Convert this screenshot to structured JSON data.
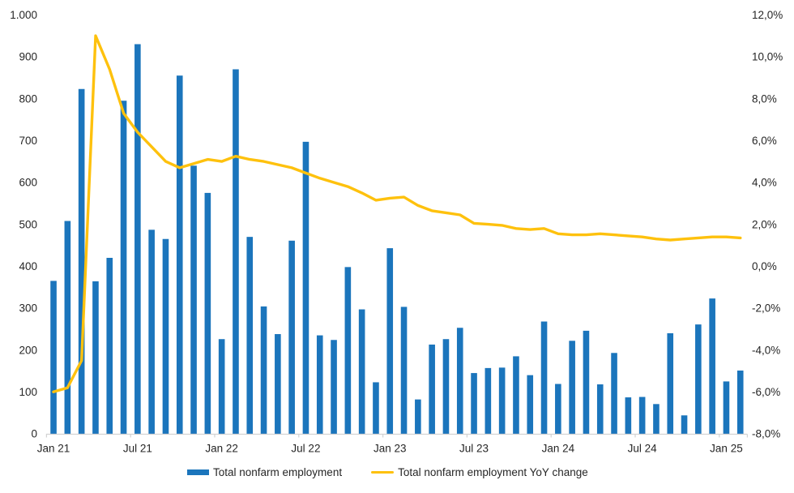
{
  "chart_data": {
    "type": "combo-bar-line",
    "title": "",
    "months": [
      "Jan 21",
      "Feb 21",
      "Mar 21",
      "Apr 21",
      "May 21",
      "Jun 21",
      "Jul 21",
      "Aug 21",
      "Sep 21",
      "Oct 21",
      "Nov 21",
      "Dec 21",
      "Jan 22",
      "Feb 22",
      "Mar 22",
      "Apr 22",
      "May 22",
      "Jun 22",
      "Jul 22",
      "Aug 22",
      "Sep 22",
      "Oct 22",
      "Nov 22",
      "Dec 22",
      "Jan 23",
      "Feb 23",
      "Mar 23",
      "Apr 23",
      "May 23",
      "Jun 23",
      "Jul 23",
      "Aug 23",
      "Sep 23",
      "Oct 23",
      "Nov 23",
      "Dec 23",
      "Jan 24",
      "Feb 24",
      "Mar 24",
      "Apr 24",
      "May 24",
      "Jun 24",
      "Jul 24",
      "Aug 24",
      "Sep 24",
      "Oct 24",
      "Nov 24",
      "Dec 24",
      "Jan 25",
      "Feb 25"
    ],
    "series": [
      {
        "name": "Total nonfarm employment",
        "type": "bar",
        "axis": "left",
        "color": "#1B75BC",
        "values": [
          365,
          508,
          823,
          364,
          420,
          795,
          930,
          487,
          465,
          855,
          640,
          575,
          226,
          870,
          470,
          304,
          238,
          461,
          697,
          235,
          224,
          398,
          297,
          123,
          443,
          303,
          82,
          213,
          226,
          253,
          145,
          157,
          158,
          185,
          140,
          268,
          119,
          222,
          246,
          118,
          193,
          87,
          88,
          71,
          240,
          44,
          261,
          323,
          125,
          151
        ]
      },
      {
        "name": "Total nonfarm employment YoY change",
        "type": "line",
        "axis": "right",
        "color": "#FEC10D",
        "values": [
          -6.0,
          -5.8,
          -4.5,
          11.0,
          9.4,
          7.3,
          6.4,
          5.7,
          5.0,
          4.7,
          4.9,
          5.1,
          5.0,
          5.25,
          5.1,
          5.0,
          4.85,
          4.7,
          4.45,
          4.2,
          4.0,
          3.8,
          3.5,
          3.15,
          3.25,
          3.3,
          2.9,
          2.65,
          2.55,
          2.45,
          2.05,
          2.0,
          1.95,
          1.8,
          1.75,
          1.8,
          1.55,
          1.5,
          1.5,
          1.55,
          1.5,
          1.45,
          1.4,
          1.3,
          1.25,
          1.3,
          1.35,
          1.4,
          1.4,
          1.35
        ]
      }
    ],
    "left_axis": {
      "min": 0,
      "max": 1000,
      "tick_labels": [
        "1.000",
        "900",
        "800",
        "700",
        "600",
        "500",
        "400",
        "300",
        "200",
        "100",
        "0"
      ]
    },
    "right_axis": {
      "min": -8.0,
      "max": 12.0,
      "tick_labels": [
        "12,0%",
        "10,0%",
        "8,0%",
        "6,0%",
        "4,0%",
        "2,0%",
        "0,0%",
        "-2,0%",
        "-4,0%",
        "-6,0%",
        "-8,0%"
      ]
    },
    "x_axis": {
      "tick_labels": [
        "Jan 21",
        "Jul 21",
        "Jan 22",
        "Jul 22",
        "Jan 23",
        "Jul 23",
        "Jan 24",
        "Jul 24",
        "Jan 25"
      ],
      "label_interval_months": 6
    },
    "legend_position": "bottom",
    "grid": "off",
    "colors": {
      "background": "#FFFFFF",
      "text": "#262626",
      "axis_line": "#D2D2D2"
    }
  }
}
